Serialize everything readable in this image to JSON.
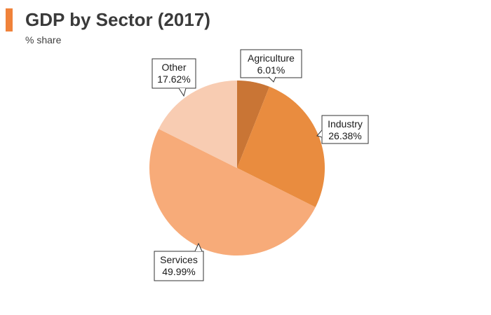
{
  "header": {
    "title": "GDP by Sector (2017)",
    "subtitle": "% share"
  },
  "chart_data": {
    "type": "pie",
    "title": "GDP by Sector (2017)",
    "subtitle": "% share",
    "slices": [
      {
        "name": "Agriculture",
        "value": 6.01,
        "label": "6.01%",
        "color": "#c97535"
      },
      {
        "name": "Industry",
        "value": 26.38,
        "label": "26.38%",
        "color": "#e98c3f"
      },
      {
        "name": "Services",
        "value": 49.99,
        "label": "49.99%",
        "color": "#f7ab79"
      },
      {
        "name": "Other",
        "value": 17.62,
        "label": "17.62%",
        "color": "#f8ccb2"
      }
    ],
    "start_angle": "12 o'clock",
    "direction": "clockwise"
  },
  "colors": {
    "accent": "#f0823a",
    "title": "#3a3a3a"
  }
}
